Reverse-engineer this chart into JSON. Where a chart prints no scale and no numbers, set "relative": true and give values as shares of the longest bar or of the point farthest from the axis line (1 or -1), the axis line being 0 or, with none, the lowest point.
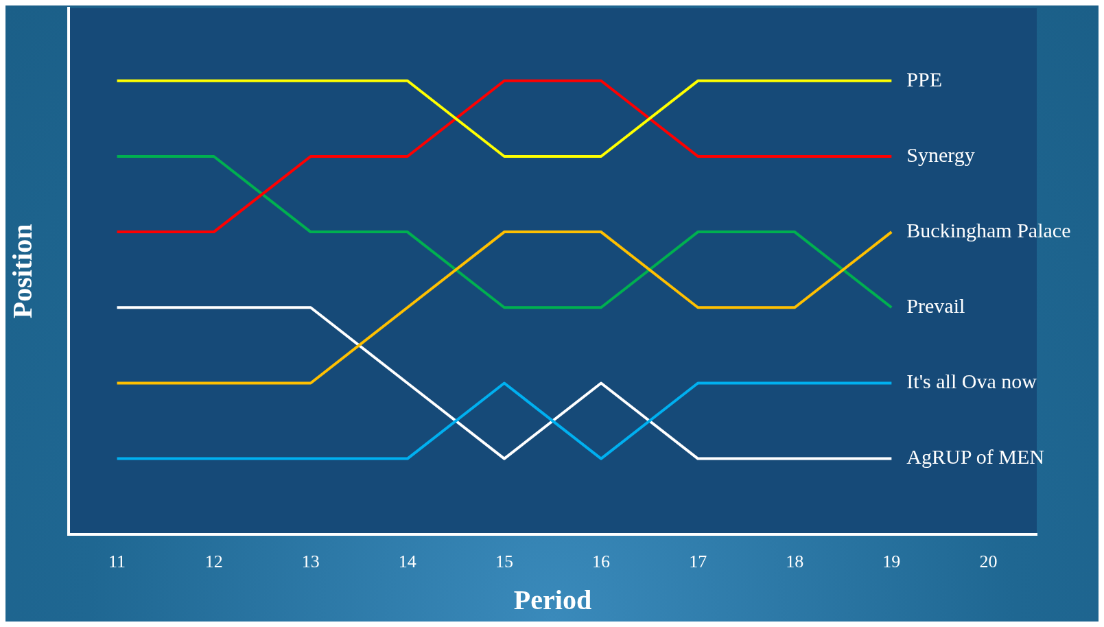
{
  "chart_data": {
    "type": "line",
    "xlabel": "Period",
    "ylabel": "Position",
    "relative": true,
    "legend": false,
    "grid": false,
    "marker": "none",
    "line_style": "solid",
    "categories": [
      "11",
      "12",
      "13",
      "14",
      "15",
      "16",
      "17",
      "18",
      "19",
      "20"
    ],
    "series": [
      {
        "name": "PPE",
        "color": "#ffff00",
        "values": [
          1,
          1,
          1,
          1,
          0.8333,
          0.8333,
          1,
          1,
          1,
          null
        ]
      },
      {
        "name": "Synergy",
        "color": "#ff0000",
        "values": [
          0.6667,
          0.6667,
          0.8333,
          0.8333,
          1,
          1,
          0.8333,
          0.8333,
          0.8333,
          null
        ]
      },
      {
        "name": "Buckingham Palace",
        "color": "#ffc000",
        "values": [
          0.3333,
          0.3333,
          0.3333,
          0.5,
          0.6667,
          0.6667,
          0.5,
          0.5,
          0.6667,
          null
        ]
      },
      {
        "name": "Prevail",
        "color": "#00b050",
        "values": [
          0.8333,
          0.8333,
          0.6667,
          0.6667,
          0.5,
          0.5,
          0.6667,
          0.6667,
          0.5,
          null
        ]
      },
      {
        "name": "It's all Ova now",
        "color": "#00b0f0",
        "values": [
          0.1667,
          0.1667,
          0.1667,
          0.1667,
          0.3333,
          0.1667,
          0.3333,
          0.3333,
          0.3333,
          null
        ]
      },
      {
        "name": "AgRUP of MEN",
        "color": "#ffffff",
        "values": [
          0.5,
          0.5,
          0.5,
          0.3333,
          0.1667,
          0.3333,
          0.1667,
          0.1667,
          0.1667,
          null
        ]
      }
    ]
  }
}
